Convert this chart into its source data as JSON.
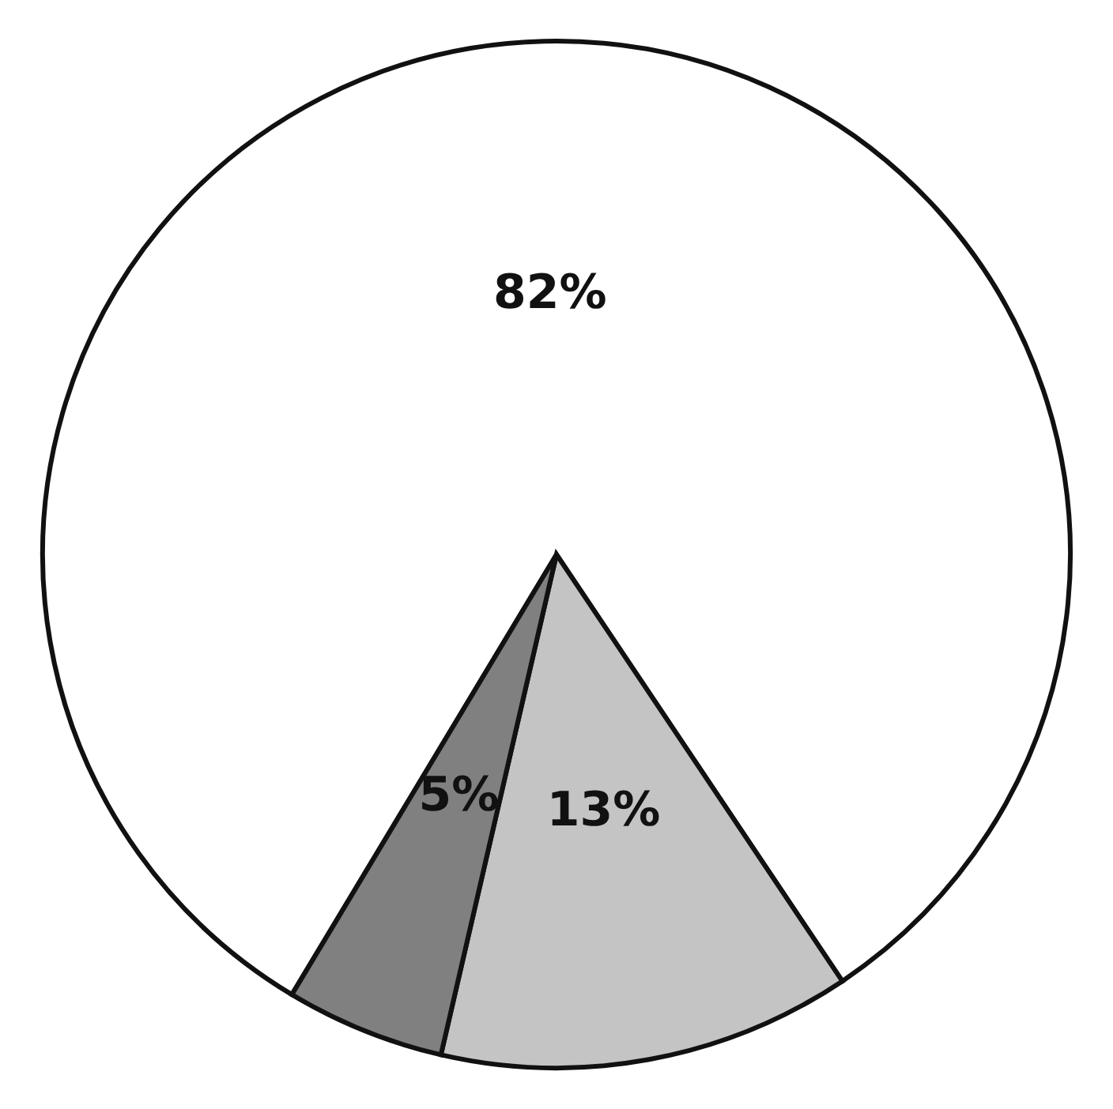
{
  "chart_data": {
    "type": "pie",
    "categories": [
      null,
      null,
      null
    ],
    "values": [
      82,
      13,
      5
    ],
    "colors": [
      "#ffffff",
      "#c4c4c4",
      "#808080"
    ],
    "value_labels": [
      "82%",
      "13%",
      "5%"
    ]
  }
}
